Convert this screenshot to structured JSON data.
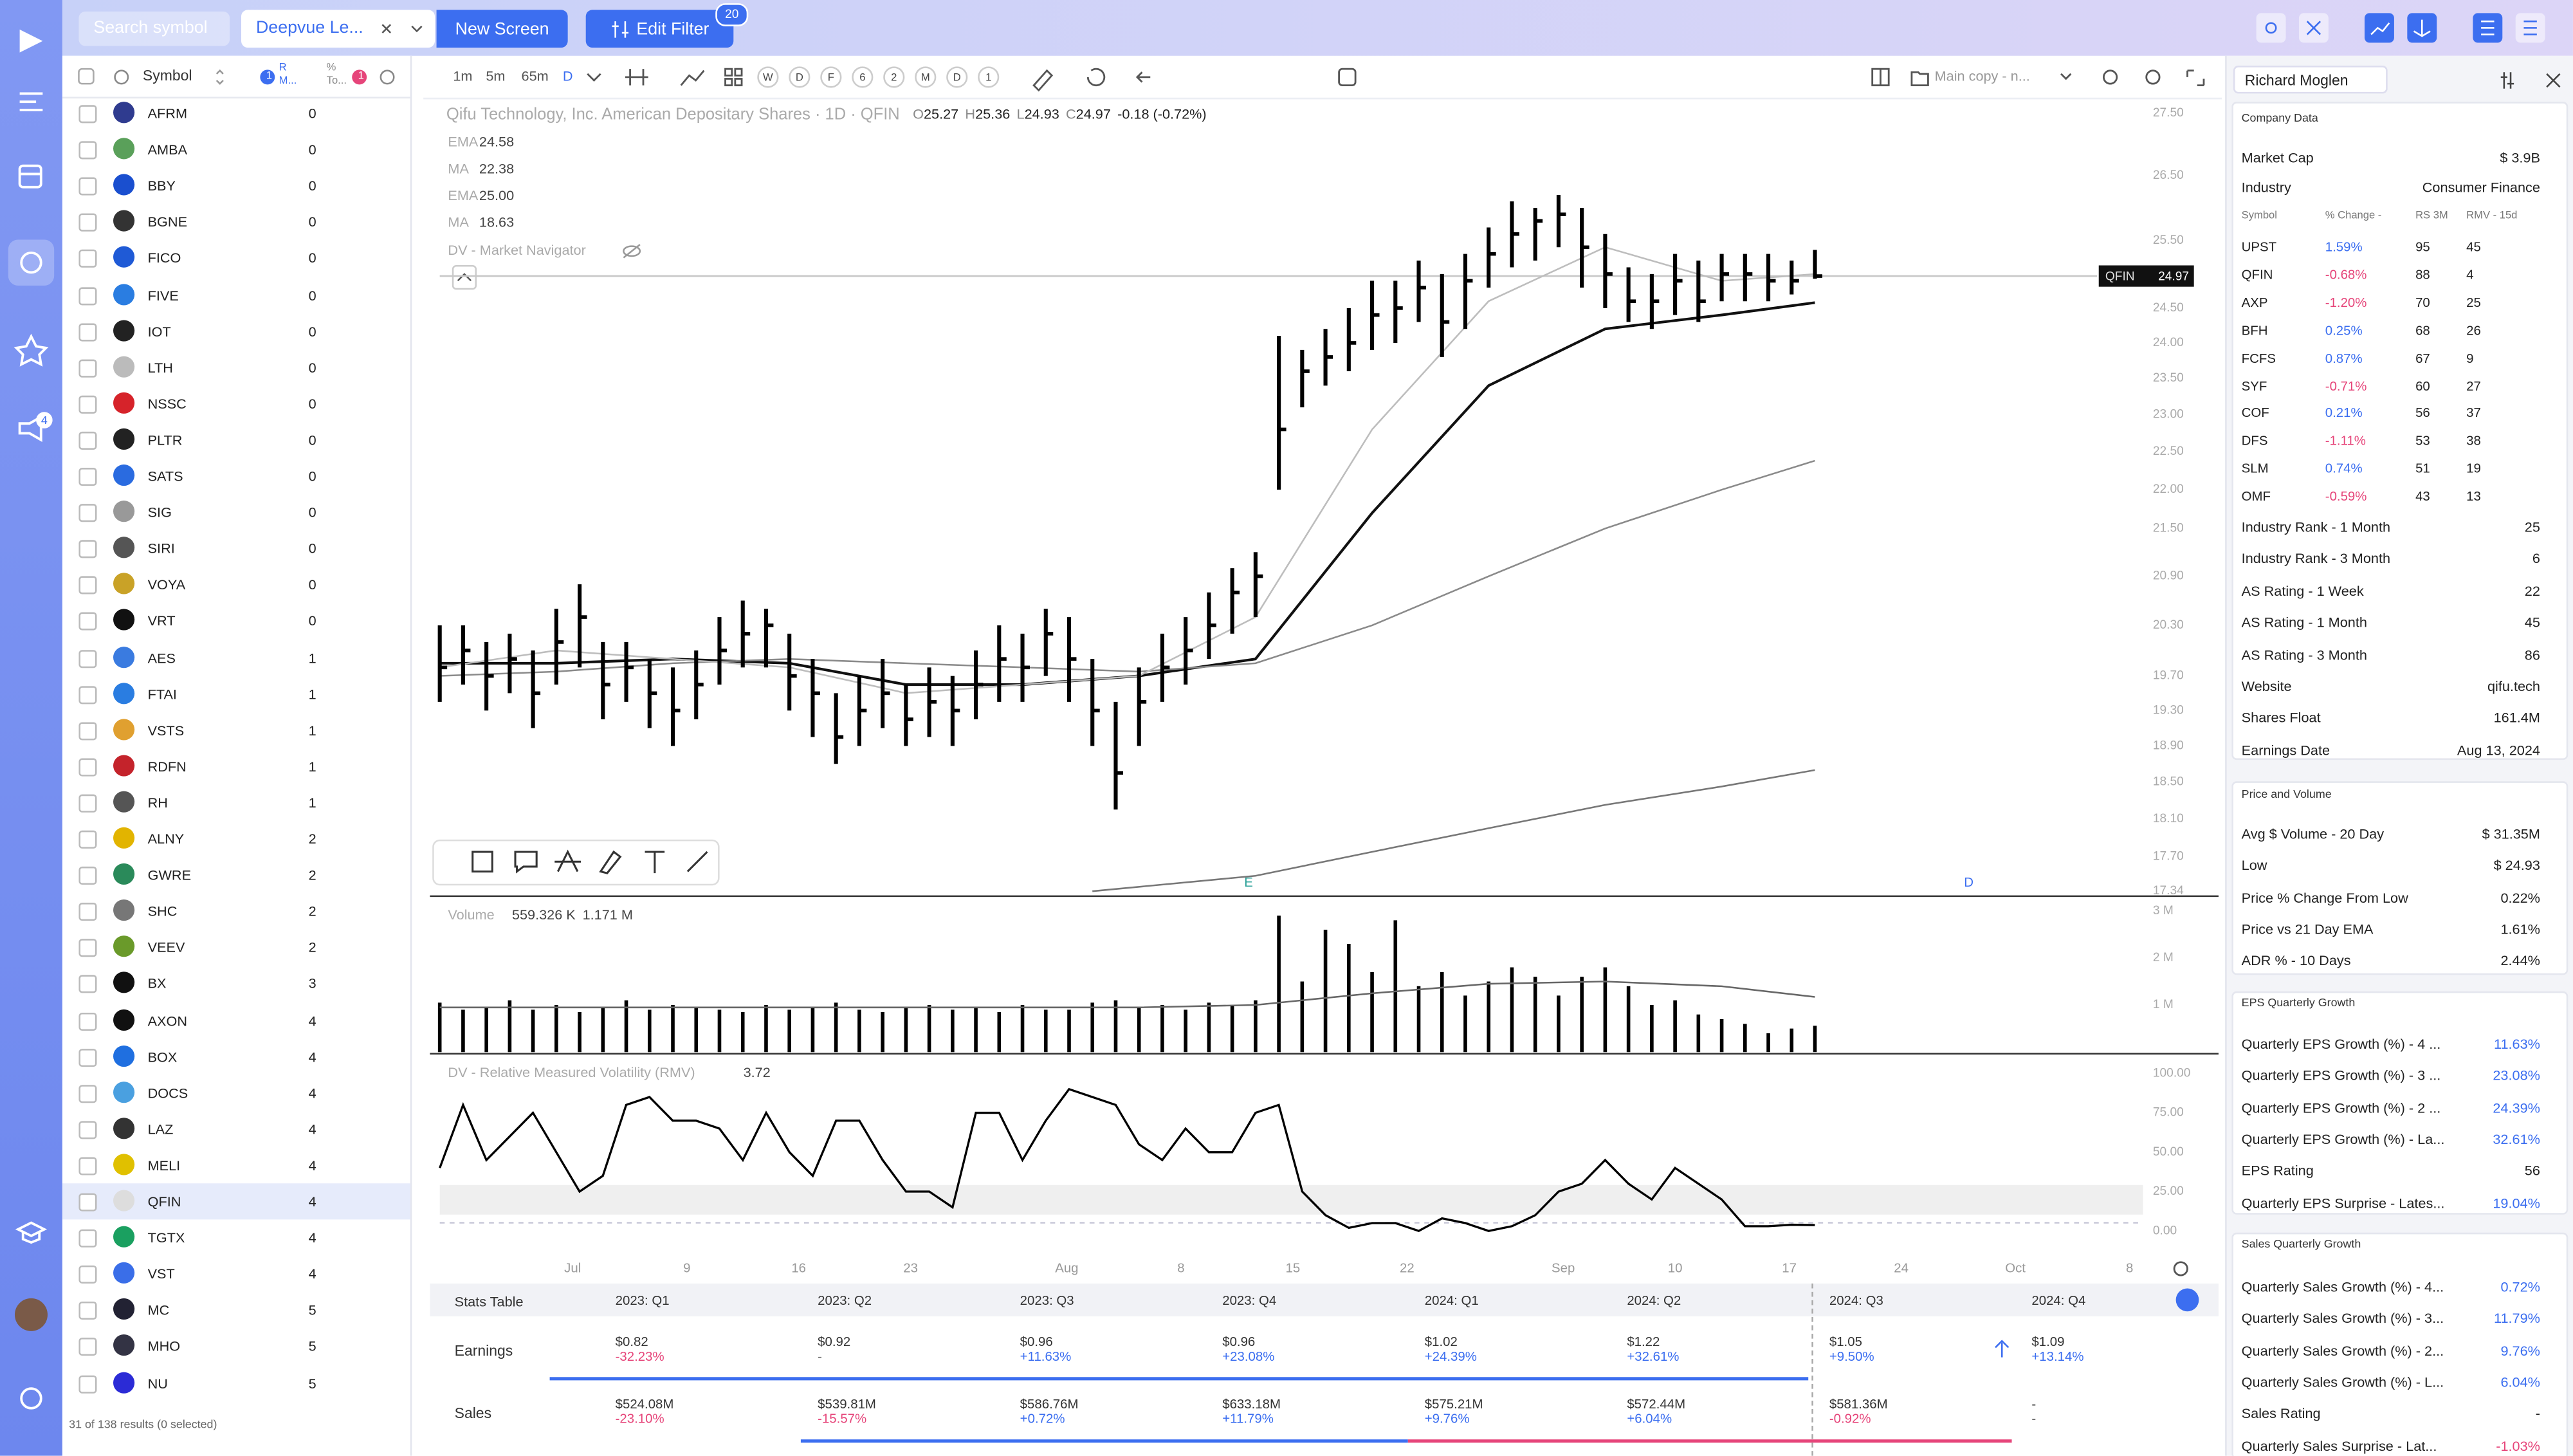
{
  "nav_badge": 4,
  "topbar": {
    "search": "Search symbol",
    "screen": "Deepvue Le...",
    "new_screen": "New Screen",
    "edit_filter": "Edit Filter",
    "filter_count": 20
  },
  "list": {
    "header": {
      "symbol": "Symbol",
      "sort_badge": 1,
      "col1": "R M...",
      "col2": "% To...",
      "filter_badge": 1
    },
    "rows": [
      [
        "AFRM",
        0
      ],
      [
        "AMBA",
        0
      ],
      [
        "BBY",
        0
      ],
      [
        "BGNE",
        0
      ],
      [
        "FICO",
        0
      ],
      [
        "FIVE",
        0
      ],
      [
        "IOT",
        0
      ],
      [
        "LTH",
        0
      ],
      [
        "NSSC",
        0
      ],
      [
        "PLTR",
        0
      ],
      [
        "SATS",
        0
      ],
      [
        "SIG",
        0
      ],
      [
        "SIRI",
        0
      ],
      [
        "VOYA",
        0
      ],
      [
        "VRT",
        0
      ],
      [
        "AES",
        1
      ],
      [
        "FTAI",
        1
      ],
      [
        "VSTS",
        1
      ],
      [
        "RDFN",
        1
      ],
      [
        "RH",
        1
      ],
      [
        "ALNY",
        2
      ],
      [
        "GWRE",
        2
      ],
      [
        "SHC",
        2
      ],
      [
        "VEEV",
        2
      ],
      [
        "BX",
        3
      ],
      [
        "AXON",
        4
      ],
      [
        "BOX",
        4
      ],
      [
        "DOCS",
        4
      ],
      [
        "LAZ",
        4
      ],
      [
        "MELI",
        4
      ],
      [
        "QFIN",
        4
      ],
      [
        "TGTX",
        4
      ],
      [
        "VST",
        4
      ],
      [
        "MC",
        5
      ],
      [
        "MHO",
        5
      ],
      [
        "NU",
        5
      ]
    ],
    "selected_row": 30,
    "footer": "31 of 138 results (0 selected)"
  },
  "toolbar": {
    "intervals": [
      "1m",
      "5m",
      "65m",
      "D"
    ],
    "ranges": [
      "W",
      "D",
      "F",
      "6",
      "2",
      "M",
      "D",
      "1"
    ],
    "layout": "Main copy - n..."
  },
  "chart_data": {
    "type": "ohlc",
    "title": "Qifu Technology, Inc. American Depositary Shares · 1D · QFIN",
    "quote": [
      [
        "O",
        25.27
      ],
      [
        "H",
        25.36
      ],
      [
        "L",
        24.93
      ],
      [
        "C",
        24.97
      ]
    ],
    "change": "-0.18 (-0.72%)",
    "log": true,
    "grid": false,
    "ylim": [
      17.34,
      27.5
    ],
    "yticks": [
      {
        "value": 27.5,
        "label": "27.50"
      },
      {
        "value": 26.5,
        "label": "26.50"
      },
      {
        "value": 25.5,
        "label": "25.50"
      },
      {
        "value": 24.5,
        "label": "24.50"
      },
      {
        "value": 24,
        "label": "24.00"
      },
      {
        "value": 23.5,
        "label": "23.50"
      },
      {
        "value": 23,
        "label": "23.00"
      },
      {
        "value": 22.5,
        "label": "22.50"
      },
      {
        "value": 22,
        "label": "22.00"
      },
      {
        "value": 21.5,
        "label": "21.50"
      },
      {
        "value": 20.9,
        "label": "20.90"
      },
      {
        "value": 20.3,
        "label": "20.30"
      },
      {
        "value": 19.7,
        "label": "19.70"
      },
      {
        "value": 19.3,
        "label": "19.30"
      },
      {
        "value": 18.9,
        "label": "18.90"
      },
      {
        "value": 18.5,
        "label": "18.50"
      },
      {
        "value": 18.1,
        "label": "18.10"
      },
      {
        "value": 17.7,
        "label": "17.70"
      },
      {
        "value": 17.34,
        "label": "17.34"
      }
    ],
    "xlim": [
      0,
      73.5
    ],
    "xticks": [
      {
        "value": 5.7,
        "label": "Jul"
      },
      {
        "value": 10.6,
        "label": "9"
      },
      {
        "value": 15.4,
        "label": "16"
      },
      {
        "value": 20.2,
        "label": "23"
      },
      {
        "value": 26.9,
        "label": "Aug"
      },
      {
        "value": 31.8,
        "label": "8"
      },
      {
        "value": 36.6,
        "label": "15"
      },
      {
        "value": 41.5,
        "label": "22"
      },
      {
        "value": 48.2,
        "label": "Sep"
      },
      {
        "value": 53.0,
        "label": "10"
      },
      {
        "value": 57.9,
        "label": "17"
      },
      {
        "value": 62.7,
        "label": "24"
      },
      {
        "value": 67.6,
        "label": "Oct"
      },
      {
        "value": 72.5,
        "label": "8"
      }
    ],
    "x": [
      0,
      1,
      2,
      3,
      4,
      5,
      6,
      7,
      8,
      9,
      10,
      11,
      12,
      13,
      14,
      15,
      16,
      17,
      18,
      19,
      20,
      21,
      22,
      23,
      24,
      25,
      26,
      27,
      28,
      29,
      30,
      31,
      32,
      33,
      34,
      35,
      36,
      37,
      38,
      39,
      40,
      41,
      42,
      43,
      44,
      45,
      46,
      47,
      48,
      49,
      50,
      51,
      52,
      53,
      54,
      55,
      56,
      57,
      58,
      59
    ],
    "series": [
      {
        "name": "QFIN",
        "color": "#000000",
        "high": [
          20.3,
          20.3,
          20.1,
          20.2,
          20.0,
          20.5,
          20.8,
          20.1,
          20.1,
          19.9,
          19.8,
          20.0,
          20.4,
          20.6,
          20.5,
          20.2,
          19.9,
          19.5,
          19.7,
          19.9,
          19.6,
          19.8,
          19.7,
          20.0,
          20.3,
          20.2,
          20.5,
          20.4,
          19.9,
          19.4,
          19.8,
          20.2,
          20.4,
          20.7,
          21.0,
          21.2,
          24.1,
          23.9,
          24.2,
          24.5,
          24.9,
          24.9,
          25.2,
          25.0,
          25.3,
          25.7,
          26.1,
          26.0,
          26.2,
          26.0,
          25.6,
          25.1,
          25.0,
          25.3,
          25.2,
          25.3,
          25.3,
          25.3,
          25.2,
          25.36
        ],
        "low": [
          19.4,
          19.6,
          19.3,
          19.5,
          19.1,
          19.6,
          19.8,
          19.2,
          19.4,
          19.1,
          18.9,
          19.2,
          19.6,
          19.8,
          19.8,
          19.3,
          19.0,
          18.7,
          18.9,
          19.1,
          18.9,
          19.0,
          18.9,
          19.2,
          19.4,
          19.4,
          19.7,
          19.4,
          18.9,
          18.2,
          18.9,
          19.4,
          19.6,
          19.9,
          20.2,
          20.4,
          22.0,
          23.1,
          23.4,
          23.6,
          23.9,
          24.0,
          24.3,
          23.8,
          24.2,
          24.8,
          25.1,
          25.2,
          25.4,
          24.8,
          24.5,
          24.3,
          24.2,
          24.4,
          24.3,
          24.6,
          24.6,
          24.6,
          24.7,
          24.93
        ],
        "close": [
          19.8,
          20.0,
          19.7,
          19.9,
          19.5,
          20.1,
          20.4,
          19.6,
          19.8,
          19.5,
          19.3,
          19.6,
          20.0,
          20.2,
          20.3,
          19.7,
          19.5,
          19.0,
          19.3,
          19.5,
          19.2,
          19.4,
          19.3,
          19.6,
          19.9,
          19.8,
          20.2,
          19.9,
          19.3,
          18.6,
          19.4,
          19.8,
          20.0,
          20.3,
          20.7,
          20.9,
          22.8,
          23.6,
          23.8,
          24.0,
          24.4,
          24.5,
          24.8,
          24.3,
          24.9,
          25.3,
          25.6,
          25.8,
          25.9,
          25.4,
          25.0,
          24.6,
          24.6,
          24.9,
          24.6,
          25.0,
          25.0,
          24.9,
          24.9,
          24.97
        ]
      }
    ],
    "indicators": [
      {
        "name": "EMA",
        "legend_value": "24.58",
        "color": "#111111",
        "width": 1.6,
        "x": [
          0,
          5,
          10,
          15,
          20,
          25,
          30,
          35,
          40,
          45,
          50,
          55,
          59
        ],
        "values": [
          19.85,
          19.85,
          19.9,
          19.85,
          19.6,
          19.6,
          19.7,
          19.9,
          21.7,
          23.4,
          24.2,
          24.4,
          24.58
        ]
      },
      {
        "name": "MA",
        "legend_value": "22.38",
        "color": "#8a8a8a",
        "width": 1,
        "x": [
          0,
          5,
          10,
          15,
          20,
          25,
          30,
          35,
          40,
          45,
          50,
          55,
          59
        ],
        "values": [
          19.7,
          19.75,
          19.85,
          19.9,
          19.85,
          19.8,
          19.75,
          19.85,
          20.3,
          20.9,
          21.5,
          22.0,
          22.38
        ]
      },
      {
        "name": "EMA",
        "legend_value": "25.00",
        "color": "#bdbdbd",
        "width": 1,
        "x": [
          0,
          5,
          10,
          15,
          20,
          25,
          30,
          35,
          40,
          45,
          50,
          55,
          59
        ],
        "values": [
          19.8,
          20.0,
          19.9,
          19.8,
          19.5,
          19.6,
          19.7,
          20.4,
          22.8,
          24.6,
          25.4,
          24.9,
          25.0
        ]
      },
      {
        "name": "MA",
        "legend_value": "18.63",
        "color": "#777777",
        "width": 1,
        "x": [
          28,
          35,
          40,
          45,
          50,
          55,
          59
        ],
        "values": [
          17.34,
          17.5,
          17.75,
          18.0,
          18.25,
          18.45,
          18.63
        ]
      }
    ],
    "navigator": "DV - Market Navigator",
    "last": {
      "symbol": "QFIN",
      "value": 24.97
    },
    "events": [
      {
        "label": "E",
        "x": 34.7,
        "color": "#2aa198"
      },
      {
        "label": "D",
        "x": 65.6,
        "color": "#3c6ef0"
      }
    ],
    "volume": {
      "name": "Volume",
      "legend": [
        "559.326 K",
        "1.171 M"
      ],
      "ylim": [
        0,
        3
      ],
      "yticks": [
        {
          "value": 3,
          "label": "3 M"
        },
        {
          "value": 2,
          "label": "2 M"
        },
        {
          "value": 1,
          "label": "1 M"
        }
      ],
      "values": [
        1.05,
        0.9,
        0.95,
        1.1,
        0.9,
        1.0,
        0.85,
        0.95,
        1.1,
        0.9,
        1.0,
        0.95,
        0.9,
        0.85,
        1.0,
        0.9,
        0.95,
        1.05,
        0.9,
        0.85,
        0.95,
        1.0,
        0.9,
        0.95,
        0.85,
        1.0,
        0.9,
        0.9,
        1.05,
        1.1,
        0.95,
        1.0,
        0.9,
        1.05,
        1.0,
        1.1,
        2.9,
        1.5,
        2.6,
        2.3,
        1.7,
        2.8,
        1.4,
        1.7,
        1.2,
        1.5,
        1.8,
        1.6,
        1.2,
        1.6,
        1.8,
        1.4,
        1.0,
        1.1,
        0.8,
        0.7,
        0.6,
        0.4,
        0.5,
        0.559326
      ],
      "ma": {
        "x": [
          0,
          10,
          20,
          30,
          35,
          40,
          45,
          50,
          55,
          59
        ],
        "values": [
          0.95,
          0.95,
          0.95,
          0.95,
          1.0,
          1.25,
          1.45,
          1.5,
          1.4,
          1.171
        ]
      }
    },
    "rmv": {
      "name": "DV - Relative Measured Volatility (RMV)",
      "ylim": [
        0,
        100
      ],
      "yticks": [
        {
          "value": 100,
          "label": "100.00"
        },
        {
          "value": 75,
          "label": "75.00"
        },
        {
          "value": 50,
          "label": "50.00"
        },
        {
          "value": 25,
          "label": "25.00"
        },
        {
          "value": 0,
          "label": "0.00"
        }
      ],
      "values": [
        40,
        80,
        45,
        60,
        75,
        50,
        25,
        35,
        80,
        85,
        70,
        70,
        65,
        45,
        75,
        50,
        35,
        70,
        70,
        45,
        25,
        25,
        15,
        75,
        75,
        45,
        70,
        90,
        85,
        80,
        55,
        45,
        65,
        50,
        50,
        75,
        80,
        25,
        10,
        2,
        5,
        5,
        0,
        8,
        5,
        0,
        3,
        10,
        25,
        30,
        45,
        30,
        20,
        40,
        30,
        20,
        3,
        3,
        4,
        3.72
      ]
    }
  },
  "stats_table": {
    "title": "Stats Table",
    "quarters": [
      "2023: Q1",
      "2023: Q2",
      "2023: Q3",
      "2023: Q4",
      "2024: Q1",
      "2024: Q2",
      "2024: Q3",
      "2024: Q4"
    ],
    "rows": [
      {
        "name": "Earnings",
        "cells": [
          [
            "$0.82",
            "-32.23%"
          ],
          [
            "$0.92",
            "-"
          ],
          [
            "$0.96",
            "+11.63%"
          ],
          [
            "$0.96",
            "+23.08%"
          ],
          [
            "$1.02",
            "+24.39%"
          ],
          [
            "$1.22",
            "+32.61%"
          ],
          [
            "$1.05",
            "+9.50%"
          ],
          [
            "$1.09",
            "+13.14%"
          ]
        ]
      },
      {
        "name": "Sales",
        "cells": [
          [
            "$524.08M",
            "-23.10%"
          ],
          [
            "$539.81M",
            "-15.57%"
          ],
          [
            "$586.76M",
            "+0.72%"
          ],
          [
            "$633.18M",
            "+11.79%"
          ],
          [
            "$575.21M",
            "+9.76%"
          ],
          [
            "$572.44M",
            "+6.04%"
          ],
          [
            "$581.36M",
            "-0.92%"
          ],
          [
            "-",
            "-"
          ]
        ]
      }
    ]
  },
  "panel_user": "Richard Moglen",
  "company": {
    "title": "Company Data",
    "top": [
      [
        "Market Cap",
        "$ 3.9B"
      ],
      [
        "Industry",
        "Consumer Finance"
      ]
    ],
    "peers": {
      "header": [
        "Symbol",
        "% Change -",
        "RS 3M",
        "RMV - 15d"
      ],
      "rows": [
        [
          "UPST",
          "1.59%",
          95,
          45
        ],
        [
          "QFIN",
          "-0.68%",
          88,
          4
        ],
        [
          "AXP",
          "-1.20%",
          70,
          25
        ],
        [
          "BFH",
          "0.25%",
          68,
          26
        ],
        [
          "FCFS",
          "0.87%",
          67,
          9
        ],
        [
          "SYF",
          "-0.71%",
          60,
          27
        ],
        [
          "COF",
          "0.21%",
          56,
          37
        ],
        [
          "DFS",
          "-1.11%",
          53,
          38
        ],
        [
          "SLM",
          "0.74%",
          51,
          19
        ],
        [
          "OMF",
          "-0.59%",
          43,
          13
        ]
      ]
    },
    "items": [
      [
        "Industry Rank - 1 Month",
        "25"
      ],
      [
        "Industry Rank - 3 Month",
        "6"
      ],
      [
        "AS Rating - 1 Week",
        "22"
      ],
      [
        "AS Rating - 1 Month",
        "45"
      ],
      [
        "AS Rating - 3 Month",
        "86"
      ],
      [
        "Website",
        "qifu.tech"
      ],
      [
        "Shares Float",
        "161.4M"
      ],
      [
        "Earnings Date",
        "Aug 13, 2024"
      ]
    ]
  },
  "price_volume": {
    "title": "Price and Volume",
    "items": [
      [
        "Avg $ Volume - 20 Day",
        "$ 31.35M"
      ],
      [
        "Low",
        "$ 24.93"
      ],
      [
        "Price % Change From Low",
        "0.22%"
      ],
      [
        "Price vs 21 Day EMA",
        "1.61%"
      ],
      [
        "ADR % - 10 Days",
        "2.44%"
      ]
    ]
  },
  "eps": {
    "title": "EPS Quarterly Growth",
    "items": [
      [
        "Quarterly EPS Growth (%) - 4 ...",
        "11.63%"
      ],
      [
        "Quarterly EPS Growth (%) - 3 ...",
        "23.08%"
      ],
      [
        "Quarterly EPS Growth (%) - 2 ...",
        "24.39%"
      ],
      [
        "Quarterly EPS Growth (%) - La...",
        "32.61%"
      ],
      [
        "EPS Rating",
        "56"
      ],
      [
        "Quarterly EPS Surprise - Lates...",
        "19.04%"
      ]
    ]
  },
  "sales": {
    "title": "Sales Quarterly Growth",
    "items": [
      [
        "Quarterly Sales Growth (%) - 4...",
        "0.72%"
      ],
      [
        "Quarterly Sales Growth (%) - 3...",
        "11.79%"
      ],
      [
        "Quarterly Sales Growth (%) - 2...",
        "9.76%"
      ],
      [
        "Quarterly Sales Growth (%) - L...",
        "6.04%"
      ],
      [
        "Sales Rating",
        "-"
      ],
      [
        "Quarterly Sales Surprise - Lat...",
        "-1.03%"
      ]
    ]
  }
}
